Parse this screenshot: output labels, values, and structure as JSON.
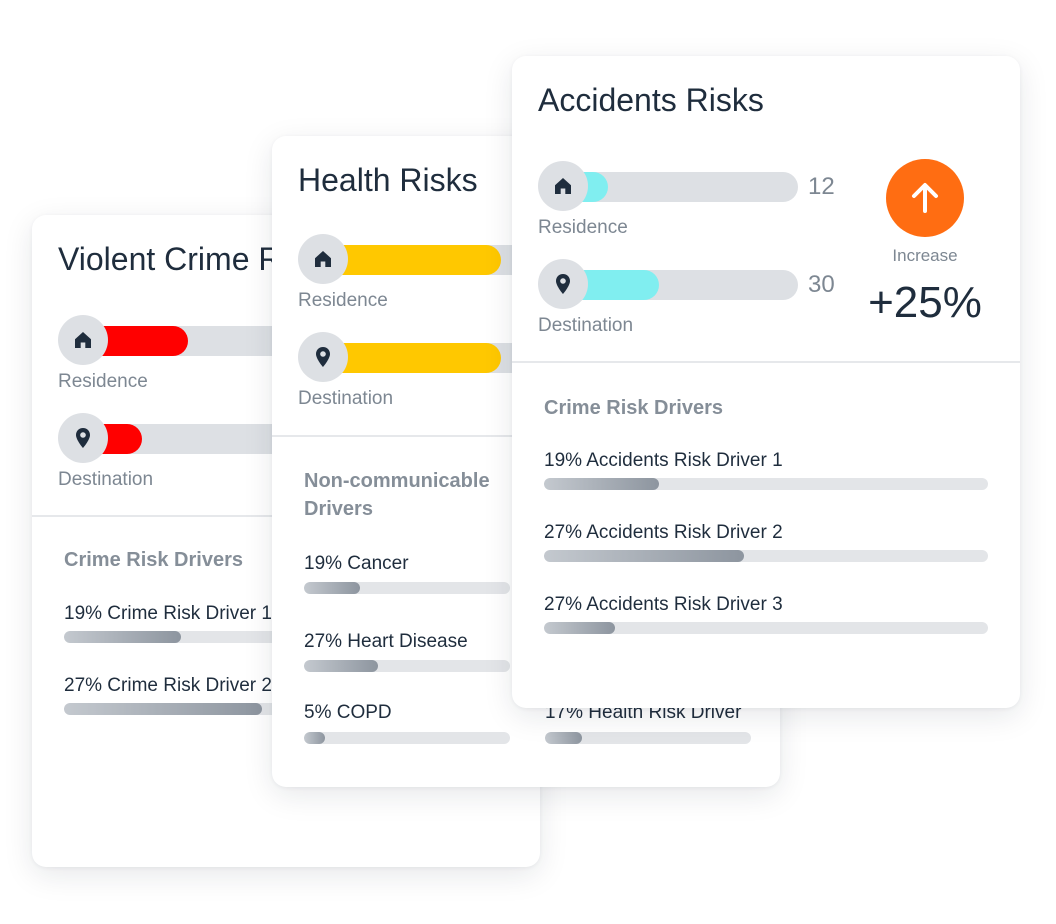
{
  "colors": {
    "crime_fill": "#ff0000",
    "health_fill": "#ffc800",
    "accidents_fill": "#80eef0",
    "increase_accent": "#ff6d12"
  },
  "crime_card": {
    "title": "Violent Crime Risks",
    "residence": {
      "label": "Residence",
      "level": 0.25,
      "icon": "home-icon"
    },
    "destination": {
      "label": "Destination",
      "level": 0.14,
      "icon": "location-pin-icon"
    },
    "drivers_title": "Crime Risk Drivers",
    "drivers": [
      {
        "label": "19% Crime Risk Driver 1",
        "level": 0.26
      },
      {
        "label": "27% Crime Risk Driver 2",
        "level": 0.44
      }
    ]
  },
  "health_card": {
    "title": "Health Risks",
    "residence": {
      "label": "Residence",
      "level": 0.4,
      "icon": "home-icon"
    },
    "destination": {
      "label": "Destination",
      "level": 0.4,
      "icon": "location-pin-icon"
    },
    "drivers_title": "Non-communicable Drivers",
    "drivers": [
      {
        "label": "19% Cancer",
        "level": 0.27
      },
      {
        "label": "27% Heart Disease",
        "level": 0.36
      },
      {
        "label": "5% COPD",
        "level": 0.1
      }
    ],
    "drivers_right": [
      {
        "label": "17% Health Risk Driver",
        "level": 0.18
      }
    ]
  },
  "accidents_card": {
    "title": "Accidents Risks",
    "residence": {
      "label": "Residence",
      "value": "12",
      "level": 0.19,
      "icon": "home-icon"
    },
    "destination": {
      "label": "Destination",
      "value": "30",
      "level": 0.41,
      "icon": "location-pin-icon"
    },
    "increase_label": "Increase",
    "increase_value": "+25%",
    "increase_icon": "arrow-up-icon",
    "drivers_title": "Crime Risk Drivers",
    "drivers": [
      {
        "label": "19% Accidents Risk Driver 1",
        "level": 0.26
      },
      {
        "label": "27% Accidents Risk Driver 2",
        "level": 0.45
      },
      {
        "label": "27% Accidents Risk Driver 3",
        "level": 0.16
      }
    ]
  }
}
